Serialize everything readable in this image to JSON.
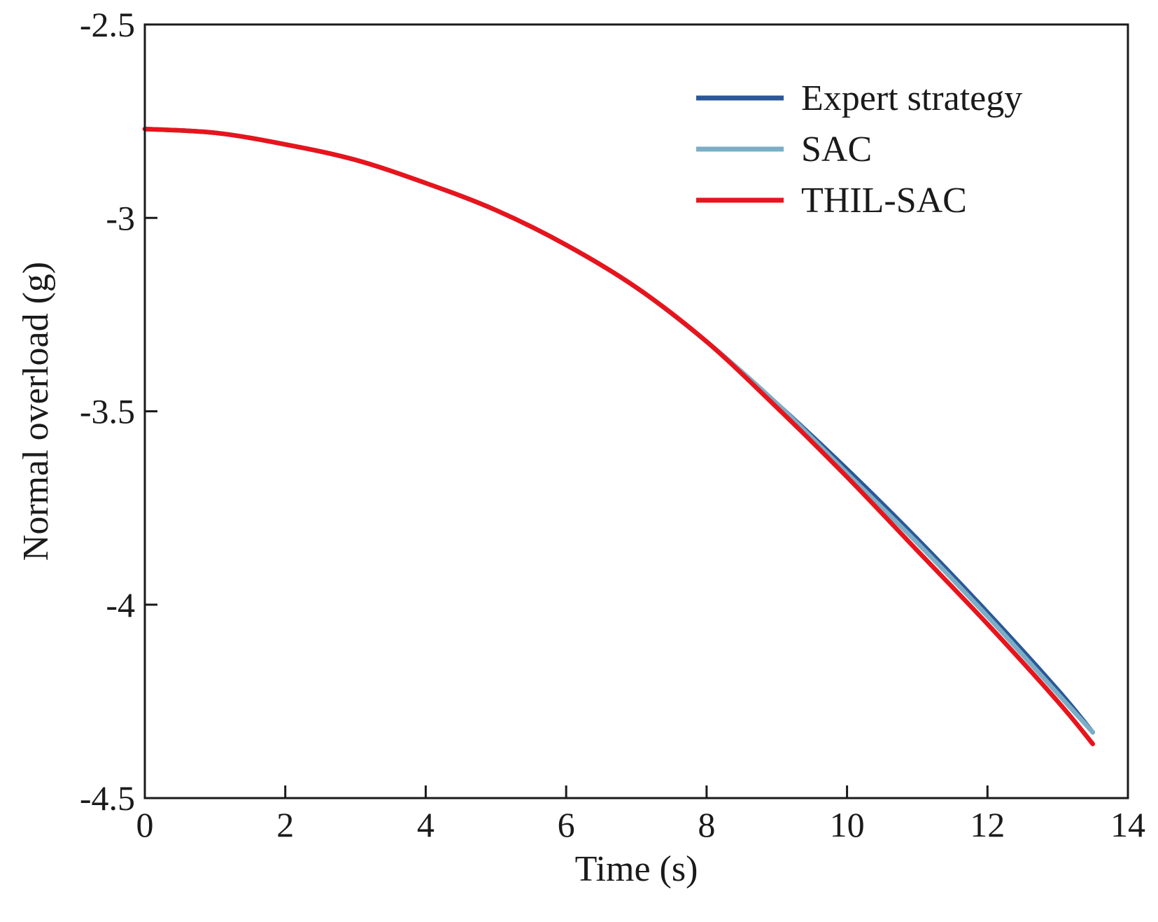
{
  "chart_data": {
    "type": "line",
    "title": "",
    "xlabel": "Time (s)",
    "ylabel": "Normal overload (g)",
    "xlim": [
      0,
      14
    ],
    "ylim": [
      -4.5,
      -2.5
    ],
    "xticks": [
      0,
      2,
      4,
      6,
      8,
      10,
      12,
      14
    ],
    "yticks": [
      -2.5,
      -3,
      -3.5,
      -4,
      -4.5
    ],
    "xtick_labels": [
      "0",
      "2",
      "4",
      "6",
      "8",
      "10",
      "12",
      "14"
    ],
    "ytick_labels": [
      "-2.5",
      "-3",
      "-3.5",
      "-4",
      "-4.5"
    ],
    "grid": false,
    "legend_position": "top-right",
    "series": [
      {
        "name": "Expert strategy",
        "color": "#2b5797",
        "x": [
          0,
          1,
          2,
          3,
          4,
          5,
          6,
          7,
          8,
          9,
          10,
          11,
          12,
          13,
          13.5
        ],
        "y": [
          -2.77,
          -2.78,
          -2.81,
          -2.85,
          -2.91,
          -2.98,
          -3.07,
          -3.18,
          -3.32,
          -3.48,
          -3.65,
          -3.83,
          -4.02,
          -4.22,
          -4.33
        ]
      },
      {
        "name": "SAC",
        "color": "#7aaec6",
        "x": [
          0,
          1,
          2,
          3,
          4,
          5,
          6,
          7,
          8,
          9,
          10,
          11,
          12,
          13,
          13.5
        ],
        "y": [
          -2.77,
          -2.78,
          -2.81,
          -2.85,
          -2.91,
          -2.98,
          -3.07,
          -3.18,
          -3.32,
          -3.48,
          -3.66,
          -3.84,
          -4.03,
          -4.23,
          -4.33
        ]
      },
      {
        "name": "THIL-SAC",
        "color": "#e8141c",
        "x": [
          0,
          1,
          2,
          3,
          4,
          5,
          6,
          7,
          8,
          9,
          10,
          11,
          12,
          13,
          13.5
        ],
        "y": [
          -2.77,
          -2.78,
          -2.81,
          -2.85,
          -2.91,
          -2.98,
          -3.07,
          -3.18,
          -3.32,
          -3.49,
          -3.67,
          -3.86,
          -4.05,
          -4.25,
          -4.36
        ]
      }
    ]
  }
}
